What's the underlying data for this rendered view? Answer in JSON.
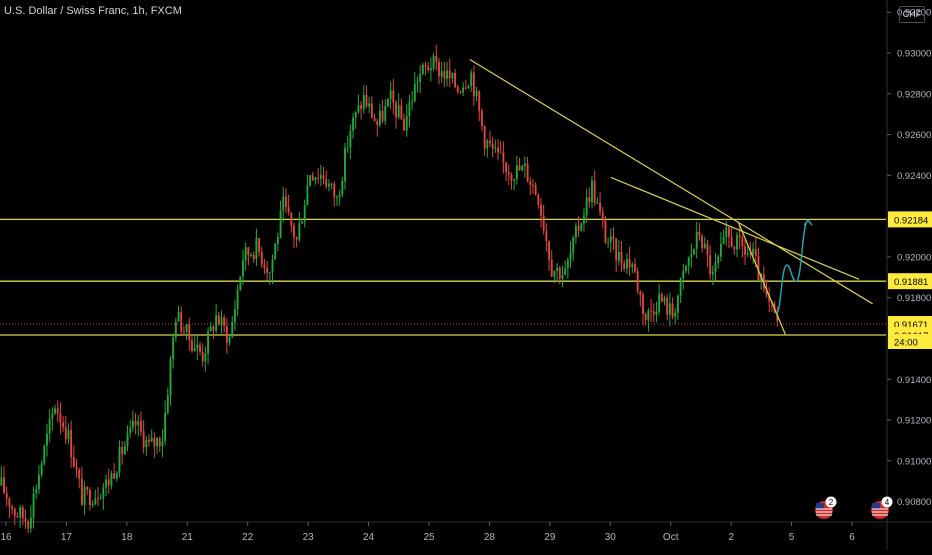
{
  "header": {
    "title": "U.S. Dollar / Swiss Franc, 1h, FXCM",
    "currency_button": "CHF"
  },
  "colors": {
    "up": "#22ab3c",
    "down": "#e0473d",
    "drawing": "#dcd34d",
    "projection": "#24a5b5",
    "price_label_bg": "#ffeb3b",
    "background": "#000000"
  },
  "events": [
    {
      "icon": "us-flag-icon",
      "count": "2"
    },
    {
      "icon": "us-flag-icon",
      "count": "4"
    }
  ],
  "countdown": "24:00",
  "price_tags": [
    {
      "label": "0.92184",
      "price": 0.92184
    },
    {
      "label": "0.91881",
      "price": 0.91881
    },
    {
      "label": "0.91671",
      "price": 0.91671
    },
    {
      "label": "0.91617",
      "price": 0.91617
    }
  ],
  "chart_data": {
    "type": "candlestick",
    "title": "U.S. Dollar / Swiss Franc, 1h, FXCM",
    "xlabel": "",
    "ylabel": "",
    "ylim": [
      0.907,
      0.9326
    ],
    "y_ticks": [
      "0.93200",
      "0.93000",
      "0.92800",
      "0.92600",
      "0.92400",
      "0.92000",
      "0.91800",
      "0.91400",
      "0.91200",
      "0.91000",
      "0.90800"
    ],
    "x_ticks": [
      "16",
      "17",
      "18",
      "21",
      "22",
      "23",
      "24",
      "25",
      "28",
      "29",
      "30",
      "Oct",
      "2",
      "5",
      "6"
    ],
    "path_anchors": [
      {
        "x": 0,
        "y": 0.9088
      },
      {
        "x": 1,
        "y": 0.9075
      },
      {
        "x": 2,
        "y": 0.9071
      },
      {
        "x": 3,
        "y": 0.91
      },
      {
        "x": 4,
        "y": 0.9128
      },
      {
        "x": 5,
        "y": 0.9112
      },
      {
        "x": 6,
        "y": 0.9082
      },
      {
        "x": 7,
        "y": 0.9084
      },
      {
        "x": 8,
        "y": 0.909
      },
      {
        "x": 9,
        "y": 0.9105
      },
      {
        "x": 10,
        "y": 0.9118
      },
      {
        "x": 11,
        "y": 0.9107
      },
      {
        "x": 12,
        "y": 0.9112
      },
      {
        "x": 13,
        "y": 0.9172
      },
      {
        "x": 14,
        "y": 0.916
      },
      {
        "x": 15,
        "y": 0.9152
      },
      {
        "x": 16,
        "y": 0.9171
      },
      {
        "x": 17,
        "y": 0.916
      },
      {
        "x": 18,
        "y": 0.92
      },
      {
        "x": 19,
        "y": 0.9205
      },
      {
        "x": 20,
        "y": 0.9193
      },
      {
        "x": 21,
        "y": 0.9225
      },
      {
        "x": 22,
        "y": 0.9208
      },
      {
        "x": 23,
        "y": 0.9242
      },
      {
        "x": 24,
        "y": 0.924
      },
      {
        "x": 25,
        "y": 0.9228
      },
      {
        "x": 26,
        "y": 0.9263
      },
      {
        "x": 27,
        "y": 0.9278
      },
      {
        "x": 28,
        "y": 0.9265
      },
      {
        "x": 29,
        "y": 0.9277
      },
      {
        "x": 30,
        "y": 0.9265
      },
      {
        "x": 31,
        "y": 0.9288
      },
      {
        "x": 32,
        "y": 0.9295
      },
      {
        "x": 33,
        "y": 0.929
      },
      {
        "x": 34,
        "y": 0.9283
      },
      {
        "x": 35,
        "y": 0.929
      },
      {
        "x": 36,
        "y": 0.9258
      },
      {
        "x": 37,
        "y": 0.9248
      },
      {
        "x": 38,
        "y": 0.9242
      },
      {
        "x": 39,
        "y": 0.9243
      },
      {
        "x": 40,
        "y": 0.923
      },
      {
        "x": 41,
        "y": 0.9195
      },
      {
        "x": 42,
        "y": 0.9192
      },
      {
        "x": 43,
        "y": 0.9215
      },
      {
        "x": 44,
        "y": 0.9235
      },
      {
        "x": 45,
        "y": 0.921
      },
      {
        "x": 46,
        "y": 0.92
      },
      {
        "x": 47,
        "y": 0.9197
      },
      {
        "x": 48,
        "y": 0.917
      },
      {
        "x": 49,
        "y": 0.918
      },
      {
        "x": 50,
        "y": 0.9172
      },
      {
        "x": 51,
        "y": 0.9195
      },
      {
        "x": 52,
        "y": 0.9212
      },
      {
        "x": 53,
        "y": 0.919
      },
      {
        "x": 54,
        "y": 0.921
      },
      {
        "x": 55,
        "y": 0.9205
      },
      {
        "x": 56,
        "y": 0.92
      },
      {
        "x": 57,
        "y": 0.9178
      },
      {
        "x": 58,
        "y": 0.9166
      }
    ],
    "x_range": [
      0,
      66
    ],
    "horizontal_lines": [
      0.92184,
      0.91881,
      0.91617
    ],
    "dotted_line": 0.91671,
    "trendlines": [
      {
        "x1": 35.0,
        "y1": 0.92968,
        "x2": 65.0,
        "y2": 0.9177
      },
      {
        "x1": 45.5,
        "y1": 0.9239,
        "x2": 64.0,
        "y2": 0.9189
      },
      {
        "x1": 55.0,
        "y1": 0.9217,
        "x2": 58.5,
        "y2": 0.9162
      }
    ],
    "projection": [
      [
        57.8,
        0.9172
      ],
      [
        58.6,
        0.9196
      ],
      [
        59.3,
        0.9188
      ],
      [
        60.2,
        0.9218
      ]
    ]
  }
}
